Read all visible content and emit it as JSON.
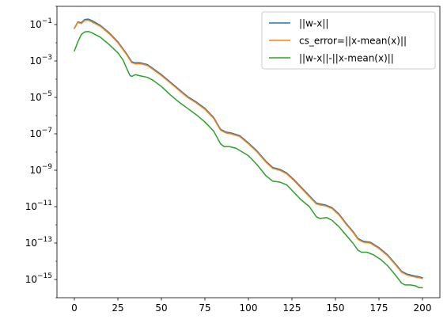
{
  "chart_data": {
    "type": "line",
    "title": "",
    "xlabel": "",
    "ylabel": "",
    "yscale": "log",
    "xlim": [
      -10,
      210
    ],
    "ylim_exp": [
      -16,
      0
    ],
    "x_ticks": [
      0,
      25,
      50,
      75,
      100,
      125,
      150,
      175,
      200
    ],
    "x_tick_labels": [
      "0",
      "25",
      "50",
      "75",
      "100",
      "125",
      "150",
      "175",
      "200"
    ],
    "y_ticks_exp": [
      -15,
      -13,
      -11,
      -9,
      -7,
      -5,
      -3,
      -1
    ],
    "y_tick_labels": [
      {
        "base": "10",
        "exp": "−15"
      },
      {
        "base": "10",
        "exp": "−13"
      },
      {
        "base": "10",
        "exp": "−11"
      },
      {
        "base": "10",
        "exp": "−9"
      },
      {
        "base": "10",
        "exp": "−7"
      },
      {
        "base": "10",
        "exp": "−5"
      },
      {
        "base": "10",
        "exp": "−3"
      },
      {
        "base": "10",
        "exp": "−1"
      }
    ],
    "legend_position": "top-right",
    "series": [
      {
        "name": "||w-x||",
        "color": "#1f77b4",
        "points": [
          [
            0,
            -1.2
          ],
          [
            2,
            -0.85
          ],
          [
            4,
            -0.9
          ],
          [
            6,
            -0.72
          ],
          [
            8,
            -0.7
          ],
          [
            10,
            -0.78
          ],
          [
            15,
            -1.05
          ],
          [
            20,
            -1.45
          ],
          [
            25,
            -1.95
          ],
          [
            30,
            -2.6
          ],
          [
            33,
            -3.05
          ],
          [
            35,
            -3.1
          ],
          [
            38,
            -3.1
          ],
          [
            42,
            -3.2
          ],
          [
            45,
            -3.4
          ],
          [
            50,
            -3.75
          ],
          [
            55,
            -4.15
          ],
          [
            60,
            -4.55
          ],
          [
            65,
            -4.95
          ],
          [
            70,
            -5.25
          ],
          [
            75,
            -5.6
          ],
          [
            80,
            -6.1
          ],
          [
            84,
            -6.75
          ],
          [
            87,
            -6.9
          ],
          [
            90,
            -6.95
          ],
          [
            95,
            -7.1
          ],
          [
            100,
            -7.5
          ],
          [
            105,
            -7.95
          ],
          [
            110,
            -8.5
          ],
          [
            114,
            -8.85
          ],
          [
            118,
            -8.95
          ],
          [
            122,
            -9.15
          ],
          [
            126,
            -9.5
          ],
          [
            130,
            -9.9
          ],
          [
            135,
            -10.4
          ],
          [
            139,
            -10.8
          ],
          [
            141,
            -10.85
          ],
          [
            144,
            -10.9
          ],
          [
            148,
            -11.05
          ],
          [
            152,
            -11.4
          ],
          [
            156,
            -11.9
          ],
          [
            160,
            -12.35
          ],
          [
            163,
            -12.75
          ],
          [
            166,
            -12.9
          ],
          [
            170,
            -12.95
          ],
          [
            175,
            -13.25
          ],
          [
            180,
            -13.65
          ],
          [
            185,
            -14.2
          ],
          [
            188,
            -14.55
          ],
          [
            191,
            -14.7
          ],
          [
            195,
            -14.8
          ],
          [
            198,
            -14.85
          ],
          [
            200,
            -14.9
          ]
        ]
      },
      {
        "name": "cs_error=||x-mean(x)||",
        "color": "#ff7f0e",
        "points": [
          [
            0,
            -1.22
          ],
          [
            2,
            -0.88
          ],
          [
            4,
            -0.95
          ],
          [
            6,
            -0.77
          ],
          [
            8,
            -0.76
          ],
          [
            10,
            -0.85
          ],
          [
            15,
            -1.1
          ],
          [
            20,
            -1.5
          ],
          [
            25,
            -2.0
          ],
          [
            30,
            -2.65
          ],
          [
            33,
            -3.1
          ],
          [
            35,
            -3.15
          ],
          [
            38,
            -3.15
          ],
          [
            42,
            -3.25
          ],
          [
            45,
            -3.45
          ],
          [
            50,
            -3.8
          ],
          [
            55,
            -4.2
          ],
          [
            60,
            -4.6
          ],
          [
            65,
            -5.0
          ],
          [
            70,
            -5.3
          ],
          [
            75,
            -5.65
          ],
          [
            80,
            -6.15
          ],
          [
            84,
            -6.8
          ],
          [
            87,
            -6.95
          ],
          [
            90,
            -7.0
          ],
          [
            95,
            -7.15
          ],
          [
            100,
            -7.55
          ],
          [
            105,
            -8.0
          ],
          [
            110,
            -8.55
          ],
          [
            114,
            -8.9
          ],
          [
            118,
            -9.0
          ],
          [
            122,
            -9.2
          ],
          [
            126,
            -9.55
          ],
          [
            130,
            -9.95
          ],
          [
            135,
            -10.45
          ],
          [
            139,
            -10.85
          ],
          [
            141,
            -10.9
          ],
          [
            144,
            -10.95
          ],
          [
            148,
            -11.1
          ],
          [
            152,
            -11.45
          ],
          [
            156,
            -11.95
          ],
          [
            160,
            -12.4
          ],
          [
            163,
            -12.8
          ],
          [
            166,
            -12.95
          ],
          [
            170,
            -13.0
          ],
          [
            175,
            -13.3
          ],
          [
            180,
            -13.7
          ],
          [
            185,
            -14.25
          ],
          [
            188,
            -14.6
          ],
          [
            191,
            -14.75
          ],
          [
            195,
            -14.85
          ],
          [
            198,
            -14.9
          ],
          [
            200,
            -14.95
          ]
        ]
      },
      {
        "name": "||w-x||-||x-mean(x)||",
        "color": "#2ca02c",
        "points": [
          [
            0,
            -2.45
          ],
          [
            2,
            -1.95
          ],
          [
            4,
            -1.55
          ],
          [
            6,
            -1.4
          ],
          [
            8,
            -1.38
          ],
          [
            10,
            -1.45
          ],
          [
            15,
            -1.7
          ],
          [
            20,
            -2.1
          ],
          [
            25,
            -2.55
          ],
          [
            28,
            -2.95
          ],
          [
            30,
            -3.4
          ],
          [
            32,
            -3.8
          ],
          [
            33,
            -3.85
          ],
          [
            35,
            -3.75
          ],
          [
            37,
            -3.8
          ],
          [
            42,
            -3.9
          ],
          [
            45,
            -4.05
          ],
          [
            50,
            -4.4
          ],
          [
            55,
            -4.85
          ],
          [
            60,
            -5.25
          ],
          [
            65,
            -5.6
          ],
          [
            70,
            -5.95
          ],
          [
            75,
            -6.35
          ],
          [
            80,
            -6.85
          ],
          [
            84,
            -7.55
          ],
          [
            86,
            -7.7
          ],
          [
            89,
            -7.7
          ],
          [
            93,
            -7.8
          ],
          [
            100,
            -8.2
          ],
          [
            105,
            -8.7
          ],
          [
            110,
            -9.3
          ],
          [
            114,
            -9.6
          ],
          [
            118,
            -9.65
          ],
          [
            122,
            -9.8
          ],
          [
            126,
            -10.2
          ],
          [
            130,
            -10.6
          ],
          [
            135,
            -11.0
          ],
          [
            139,
            -11.55
          ],
          [
            141,
            -11.65
          ],
          [
            145,
            -11.6
          ],
          [
            148,
            -11.75
          ],
          [
            152,
            -12.1
          ],
          [
            156,
            -12.55
          ],
          [
            160,
            -13.0
          ],
          [
            163,
            -13.4
          ],
          [
            165,
            -13.5
          ],
          [
            168,
            -13.5
          ],
          [
            172,
            -13.65
          ],
          [
            176,
            -13.9
          ],
          [
            180,
            -14.25
          ],
          [
            184,
            -14.7
          ],
          [
            188,
            -15.2
          ],
          [
            190,
            -15.3
          ],
          [
            193,
            -15.3
          ],
          [
            196,
            -15.35
          ],
          [
            198,
            -15.45
          ],
          [
            200,
            -15.45
          ]
        ]
      }
    ]
  }
}
